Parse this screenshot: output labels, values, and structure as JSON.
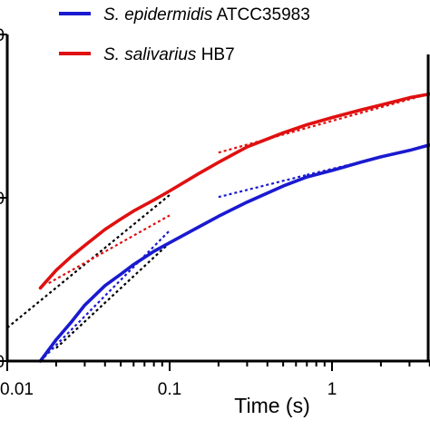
{
  "chart_data": {
    "type": "line",
    "title": "",
    "xlabel": "Time (s)",
    "ylabel": "",
    "x_scale": "log",
    "y_scale": "log",
    "xlim": [
      0.01,
      5.0
    ],
    "ylim": [
      0.001,
      0.1
    ],
    "x_ticks": [
      {
        "value": 0.01,
        "label": "0.01"
      },
      {
        "value": 0.1,
        "label": "0.1"
      },
      {
        "value": 1,
        "label": "1"
      }
    ],
    "y_ticks": [
      {
        "value": 0.001,
        "label": "0"
      },
      {
        "value": 0.01,
        "label": "0"
      },
      {
        "value": 0.1,
        "label": "0"
      }
    ],
    "grid": false,
    "legend_position": "top-left",
    "colors": {
      "epidermidis": "#1a1ad0",
      "salivarius": "#e01010",
      "fit": "#000000"
    },
    "series": [
      {
        "key": "epidermidis",
        "legend_italic": "S. epidermidis",
        "legend_rest": " ATCC35983",
        "color": "#1a1ad0",
        "x": [
          0.016,
          0.02,
          0.025,
          0.03,
          0.04,
          0.05,
          0.06,
          0.08,
          0.1,
          0.15,
          0.2,
          0.3,
          0.5,
          0.7,
          1,
          1.5,
          2,
          3,
          5
        ],
        "y": [
          0.001,
          0.00135,
          0.00175,
          0.0022,
          0.0029,
          0.0034,
          0.0039,
          0.0047,
          0.0053,
          0.0066,
          0.0077,
          0.0094,
          0.0118,
          0.0134,
          0.0147,
          0.0165,
          0.0178,
          0.0195,
          0.0224
        ]
      },
      {
        "key": "salivarius",
        "legend_italic": "S. salivarius",
        "legend_rest": " HB7",
        "color": "#e01010",
        "x": [
          0.016,
          0.02,
          0.025,
          0.03,
          0.04,
          0.05,
          0.06,
          0.08,
          0.1,
          0.15,
          0.2,
          0.3,
          0.5,
          0.7,
          1,
          1.5,
          2,
          3,
          5
        ],
        "y": [
          0.0028,
          0.0036,
          0.0044,
          0.0051,
          0.0064,
          0.0074,
          0.0083,
          0.0097,
          0.011,
          0.014,
          0.0165,
          0.0205,
          0.025,
          0.028,
          0.031,
          0.0345,
          0.037,
          0.041,
          0.045
        ]
      }
    ],
    "fit_lines": [
      {
        "color": "#000000",
        "x": [
          0.01,
          0.1
        ],
        "y": [
          0.0016,
          0.0104
        ]
      },
      {
        "color": "#1a1ad0",
        "x": [
          0.016,
          0.1
        ],
        "y": [
          0.001,
          0.0063
        ]
      },
      {
        "color": "#e01010",
        "x": [
          0.018,
          0.1
        ],
        "y": [
          0.003,
          0.0078
        ]
      },
      {
        "color": "#000000",
        "x": [
          0.02,
          0.1
        ],
        "y": [
          0.0012,
          0.0053
        ]
      },
      {
        "color": "#1a1ad0",
        "x": [
          0.2,
          0.7
        ],
        "y": [
          0.0101,
          0.0138
        ]
      },
      {
        "color": "#e01010",
        "x": [
          0.2,
          5
        ],
        "y": [
          0.0189,
          0.0462
        ]
      },
      {
        "color": "#1a1ad0",
        "x": [
          0.7,
          5
        ],
        "y": [
          0.0138,
          0.022
        ]
      }
    ]
  }
}
